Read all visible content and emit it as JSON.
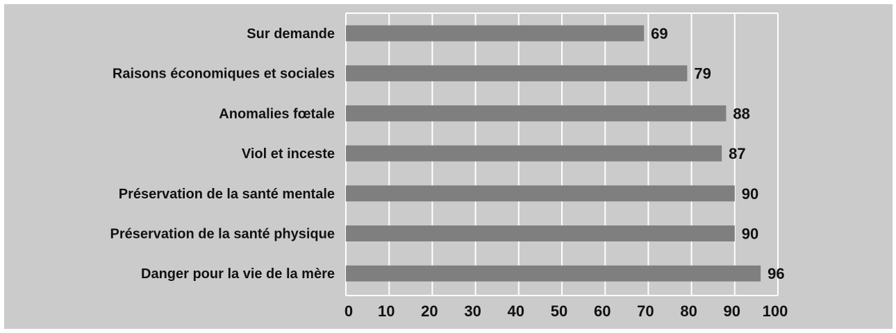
{
  "chart_data": {
    "type": "bar",
    "orientation": "horizontal",
    "categories": [
      "Sur demande",
      "Raisons économiques et sociales",
      "Anomalies fœtale",
      "Viol et inceste",
      "Préservation de la santé mentale",
      "Préservation de la santé physique",
      "Danger pour la vie de la mère"
    ],
    "values": [
      69,
      79,
      88,
      87,
      90,
      90,
      96
    ],
    "data_labels": [
      "69",
      "79",
      "88",
      "87",
      "90",
      "90",
      "96"
    ],
    "xlim": [
      0,
      100
    ],
    "xticks": [
      0,
      10,
      20,
      30,
      40,
      50,
      60,
      70,
      80,
      90,
      100
    ],
    "xtick_labels": [
      "0",
      "10",
      "20",
      "30",
      "40",
      "50",
      "60",
      "70",
      "80",
      "90",
      "100"
    ],
    "grid": "vertical",
    "legend": "none",
    "title": "",
    "xlabel": "",
    "ylabel": ""
  },
  "colors": {
    "background": "#cbcbcb",
    "bar": "#7f7f7f",
    "grid": "#ffffff",
    "text": "#111111"
  }
}
